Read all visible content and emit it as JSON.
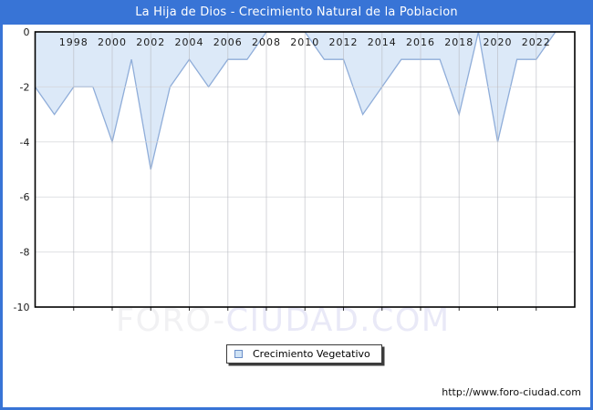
{
  "header": {
    "title": "La Hija de Dios - Crecimiento Natural de la Poblacion",
    "bg_color": "#3874d6",
    "text_color": "#ffffff"
  },
  "watermark": {
    "part1": "FORO-",
    "part2": "CIUDAD.COM",
    "color1": "#f1f1f3",
    "color2": "#e9e9f7"
  },
  "legend": {
    "label": "Crecimiento Vegetativo",
    "swatch_fill": "#cfe2f5",
    "swatch_border": "#6b8fc9"
  },
  "footer": {
    "url": "http://www.foro-ciudad.com"
  },
  "chart_data": {
    "type": "area",
    "title": "La Hija de Dios - Crecimiento Natural de la Poblacion",
    "xlabel": "",
    "ylabel": "",
    "xlim": [
      1996,
      2024
    ],
    "ylim": [
      -10,
      0
    ],
    "grid": true,
    "legend_position": "bottom-center",
    "x": [
      1996,
      1997,
      1998,
      1999,
      2000,
      2001,
      2002,
      2003,
      2004,
      2005,
      2006,
      2007,
      2008,
      2009,
      2010,
      2011,
      2012,
      2013,
      2014,
      2015,
      2016,
      2017,
      2018,
      2019,
      2020,
      2021,
      2022,
      2023
    ],
    "series": [
      {
        "name": "Crecimiento Vegetativo",
        "values": [
          -2,
          -3,
          -2,
          -2,
          -4,
          -1,
          -5,
          -2,
          -1,
          -2,
          -1,
          -1,
          0,
          0,
          0,
          -1,
          -1,
          -3,
          -2,
          -1,
          -1,
          -1,
          -3,
          0,
          -4,
          -1,
          -1,
          0
        ]
      }
    ],
    "xticks": [
      1998,
      2000,
      2002,
      2004,
      2006,
      2008,
      2010,
      2012,
      2014,
      2016,
      2018,
      2020,
      2022
    ],
    "yticks": [
      0,
      -2,
      -4,
      -6,
      -8,
      -10
    ],
    "colors": {
      "area_fill": "#dce9f8",
      "area_line": "#8fadd9",
      "grid_vertical": "#b9bbc2",
      "grid_horizontal": "#d4d5da",
      "plot_border": "#000000",
      "tick": "#333333",
      "label": "#1a1a1a"
    }
  }
}
